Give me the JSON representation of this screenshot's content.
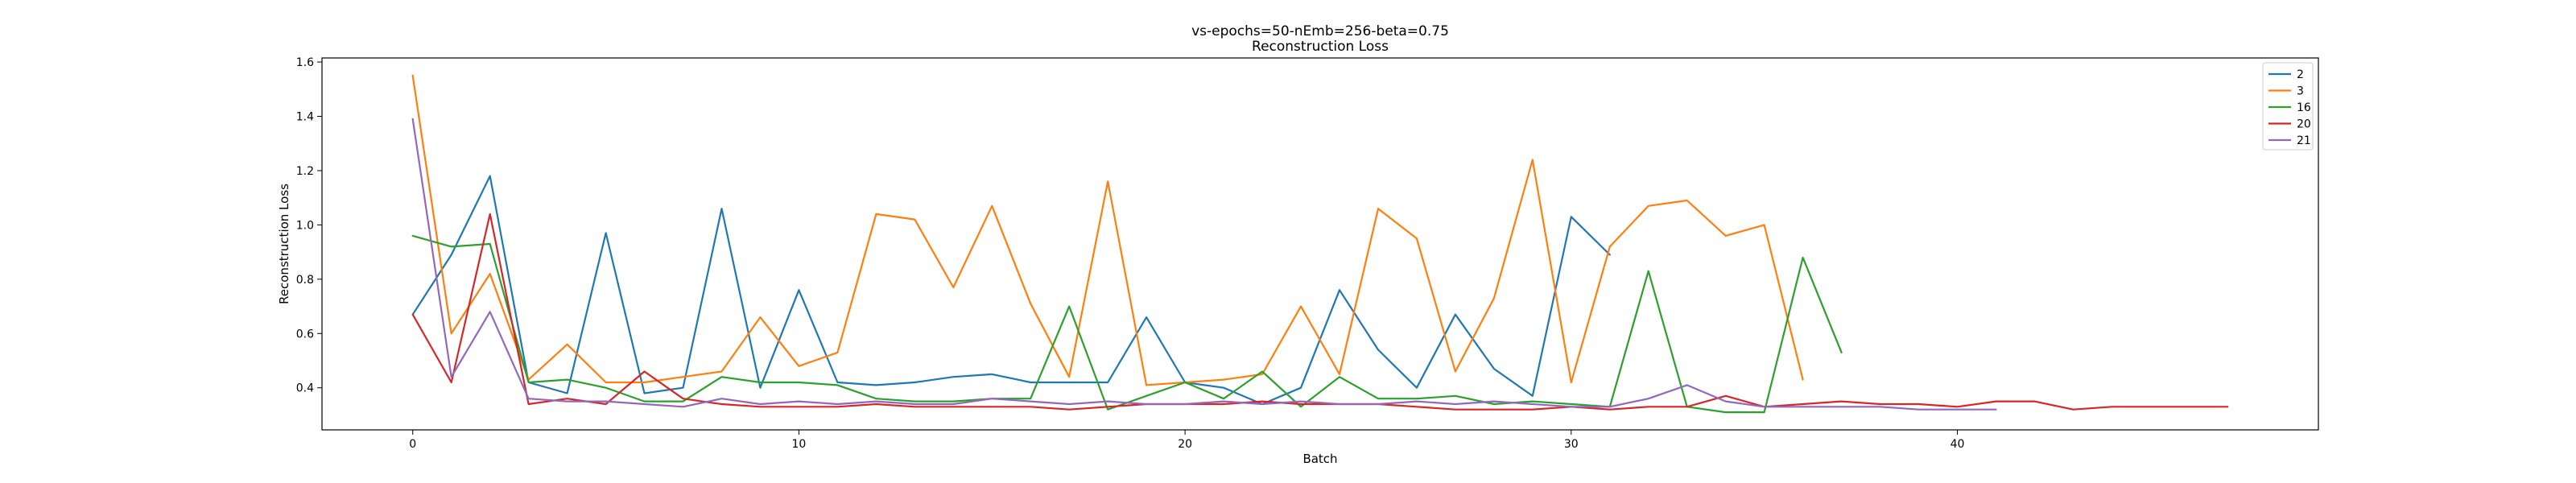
{
  "chart_data": {
    "type": "line",
    "title": "vs-epochs=50-nEmb=256-beta=0.75",
    "subtitle": "Reconstruction Loss",
    "xlabel": "Batch",
    "ylabel": "Reconstruction Loss",
    "xlim": [
      -2.35,
      49.35
    ],
    "ylim": [
      0.245,
      1.615
    ],
    "xticks": [
      0,
      10,
      20,
      30,
      40
    ],
    "yticks": [
      0.4,
      0.6,
      0.8,
      1.0,
      1.2,
      1.4,
      1.6
    ],
    "ytick_labels": [
      "0.4",
      "0.6",
      "0.8",
      "1.0",
      "1.2",
      "1.4",
      "1.6"
    ],
    "grid": false,
    "legend_position": "top-right",
    "series": [
      {
        "name": "2",
        "color": "#1f77b4",
        "x": [
          0,
          1,
          2,
          3,
          4,
          5,
          6,
          7,
          8,
          9,
          10,
          11,
          12,
          13,
          14,
          15,
          16,
          17,
          18,
          19,
          20,
          21,
          22,
          23,
          24,
          25,
          26,
          27,
          28,
          29,
          30,
          31
        ],
        "values": [
          0.67,
          0.89,
          1.18,
          0.42,
          0.38,
          0.97,
          0.38,
          0.4,
          1.06,
          0.4,
          0.76,
          0.42,
          0.41,
          0.42,
          0.44,
          0.45,
          0.42,
          0.42,
          0.42,
          0.66,
          0.42,
          0.4,
          0.34,
          0.4,
          0.76,
          0.54,
          0.4,
          0.67,
          0.47,
          0.37,
          1.03,
          0.89
        ]
      },
      {
        "name": "3",
        "color": "#ff7f0e",
        "x": [
          0,
          1,
          2,
          3,
          4,
          5,
          6,
          7,
          8,
          9,
          10,
          11,
          12,
          13,
          14,
          15,
          16,
          17,
          18,
          19,
          20,
          21,
          22,
          23,
          24,
          25,
          26,
          27,
          28,
          29,
          30,
          31,
          32,
          33,
          34,
          35,
          36
        ],
        "values": [
          1.55,
          0.6,
          0.82,
          0.43,
          0.56,
          0.42,
          0.42,
          0.44,
          0.46,
          0.66,
          0.48,
          0.53,
          1.04,
          1.02,
          0.77,
          1.07,
          0.71,
          0.44,
          1.16,
          0.41,
          0.42,
          0.43,
          0.45,
          0.7,
          0.45,
          1.06,
          0.95,
          0.46,
          0.73,
          1.24,
          0.42,
          0.92,
          1.07,
          1.09,
          0.96,
          1.0,
          0.43
        ]
      },
      {
        "name": "16",
        "color": "#2ca02c",
        "x": [
          0,
          1,
          2,
          3,
          4,
          5,
          6,
          7,
          8,
          9,
          10,
          11,
          12,
          13,
          14,
          15,
          16,
          17,
          18,
          19,
          20,
          21,
          22,
          23,
          24,
          25,
          26,
          27,
          28,
          29,
          30,
          31,
          32,
          33,
          34,
          35,
          36,
          37
        ],
        "values": [
          0.96,
          0.92,
          0.93,
          0.42,
          0.43,
          0.4,
          0.35,
          0.35,
          0.44,
          0.42,
          0.42,
          0.41,
          0.36,
          0.35,
          0.35,
          0.36,
          0.36,
          0.7,
          0.32,
          0.37,
          0.42,
          0.36,
          0.46,
          0.33,
          0.44,
          0.36,
          0.36,
          0.37,
          0.34,
          0.35,
          0.34,
          0.33,
          0.83,
          0.33,
          0.31,
          0.31,
          0.88,
          0.53
        ]
      },
      {
        "name": "20",
        "color": "#d62728",
        "x": [
          0,
          1,
          2,
          3,
          4,
          5,
          6,
          7,
          8,
          9,
          10,
          11,
          12,
          13,
          14,
          15,
          16,
          17,
          18,
          19,
          20,
          21,
          22,
          23,
          24,
          25,
          26,
          27,
          28,
          29,
          30,
          31,
          32,
          33,
          34,
          35,
          36,
          37,
          38,
          39,
          40,
          41,
          42,
          43,
          44,
          45,
          46,
          47
        ],
        "values": [
          0.67,
          0.42,
          1.04,
          0.34,
          0.36,
          0.34,
          0.46,
          0.36,
          0.34,
          0.33,
          0.33,
          0.33,
          0.34,
          0.33,
          0.33,
          0.33,
          0.33,
          0.32,
          0.33,
          0.34,
          0.34,
          0.34,
          0.35,
          0.34,
          0.34,
          0.34,
          0.33,
          0.32,
          0.32,
          0.32,
          0.33,
          0.32,
          0.33,
          0.33,
          0.37,
          0.33,
          0.34,
          0.35,
          0.34,
          0.34,
          0.33,
          0.35,
          0.35,
          0.32,
          0.33,
          0.33,
          0.33,
          0.33
        ]
      },
      {
        "name": "21",
        "color": "#9467bd",
        "x": [
          0,
          1,
          2,
          3,
          4,
          5,
          6,
          7,
          8,
          9,
          10,
          11,
          12,
          13,
          14,
          15,
          16,
          17,
          18,
          19,
          20,
          21,
          22,
          23,
          24,
          25,
          26,
          27,
          28,
          29,
          30,
          31,
          32,
          33,
          34,
          35,
          36,
          37,
          38,
          39,
          40,
          41
        ],
        "values": [
          1.39,
          0.44,
          0.68,
          0.36,
          0.35,
          0.35,
          0.34,
          0.33,
          0.36,
          0.34,
          0.35,
          0.34,
          0.35,
          0.34,
          0.34,
          0.36,
          0.35,
          0.34,
          0.35,
          0.34,
          0.34,
          0.35,
          0.34,
          0.35,
          0.34,
          0.34,
          0.35,
          0.34,
          0.35,
          0.34,
          0.33,
          0.33,
          0.36,
          0.41,
          0.35,
          0.33,
          0.33,
          0.33,
          0.33,
          0.32,
          0.32,
          0.32
        ]
      }
    ]
  }
}
